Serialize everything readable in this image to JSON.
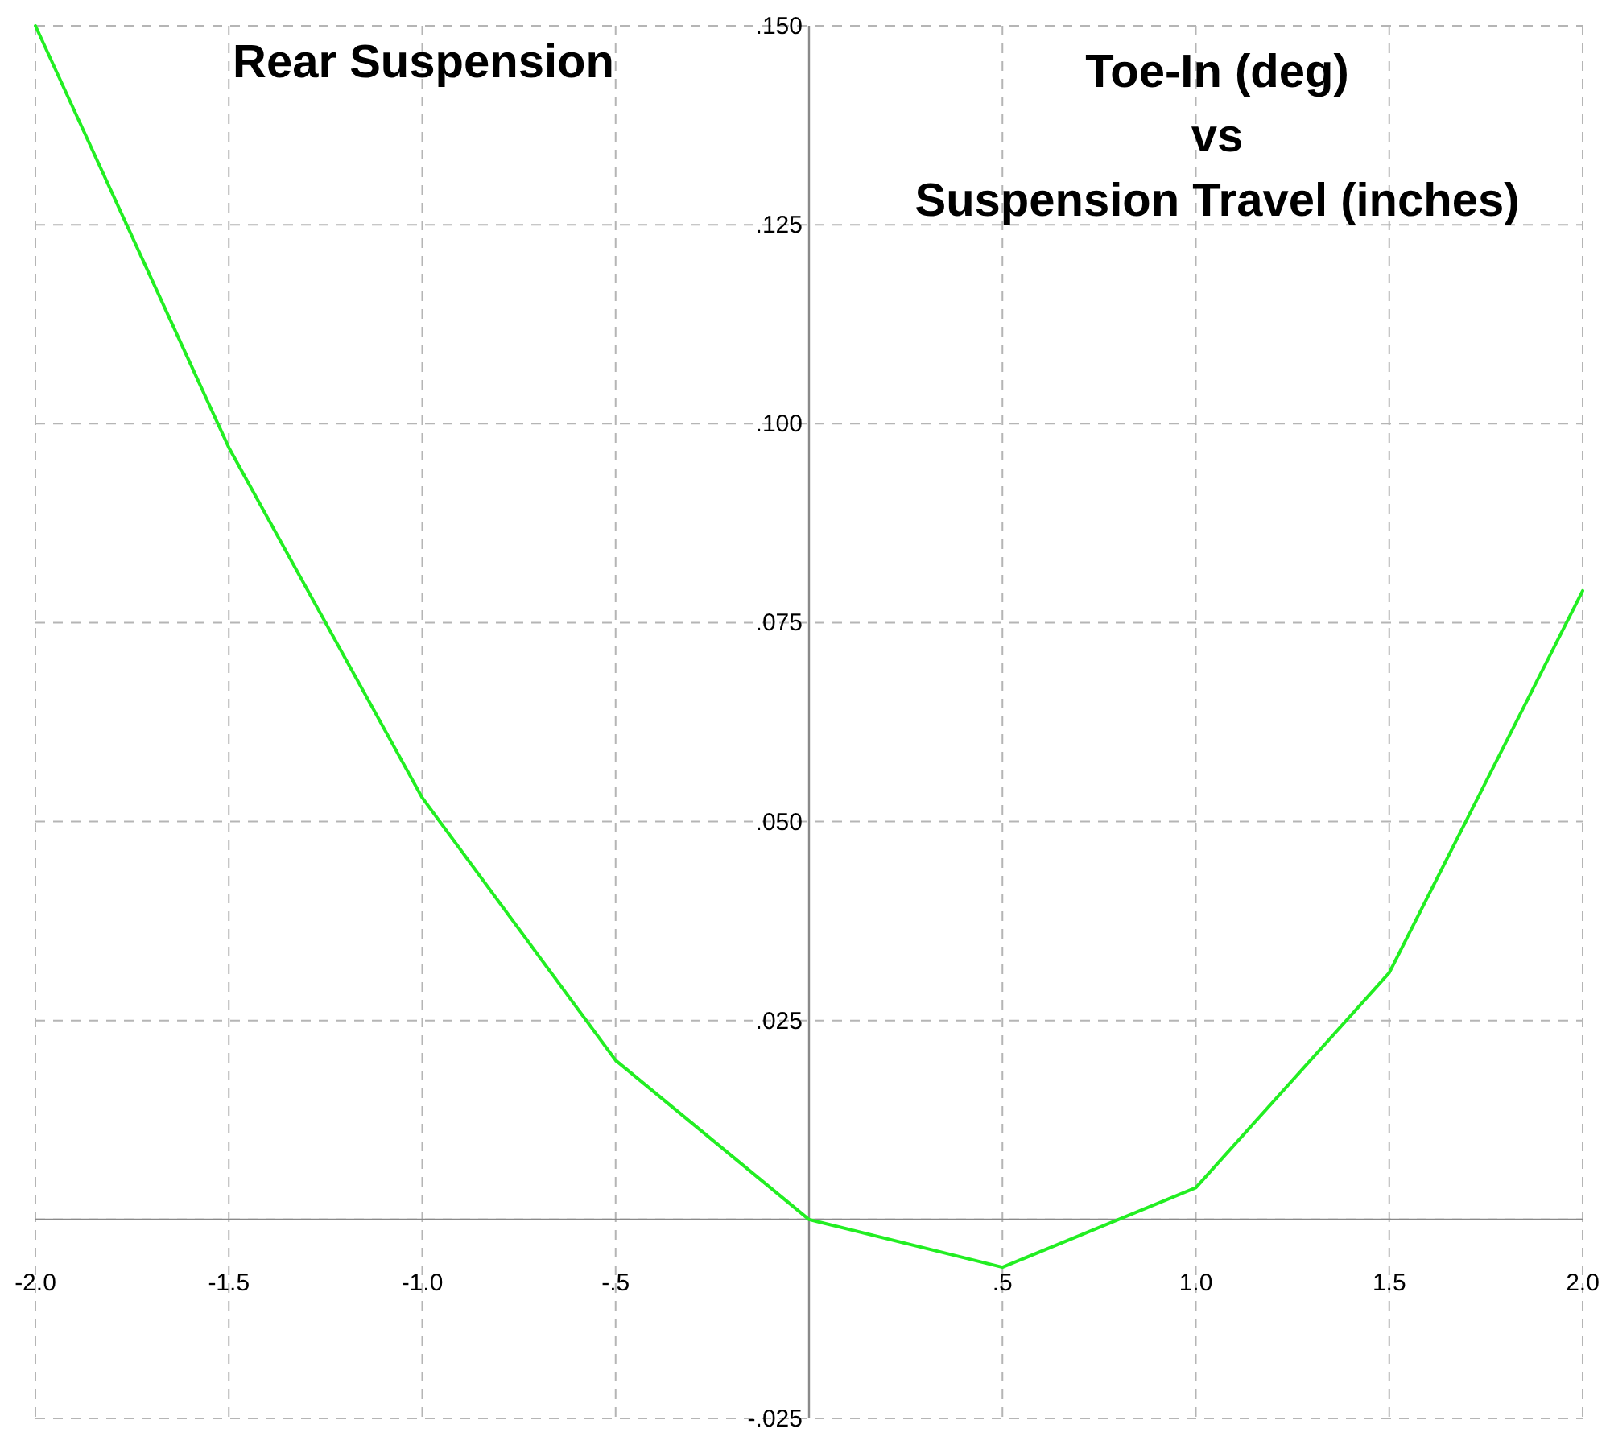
{
  "chart_data": {
    "type": "line",
    "title": "Toe-In (deg)\nvs\nSuspension Travel (inches)",
    "subtitle": "Rear Suspension",
    "x": [
      -2.0,
      -1.5,
      -1.0,
      -0.5,
      0,
      0.5,
      1.0,
      1.5,
      2.0
    ],
    "series": [
      {
        "color": "#22ee22",
        "values": [
          0.15,
          0.097,
          0.053,
          0.02,
          0,
          -0.006,
          0.004,
          0.031,
          0.079
        ]
      }
    ],
    "xlim": [
      -2.0,
      2.0
    ],
    "xticks": [
      {
        "value": -2.0,
        "label": "-2.0"
      },
      {
        "value": -1.5,
        "label": "-1.5"
      },
      {
        "value": -1.0,
        "label": "-1.0"
      },
      {
        "value": -0.5,
        "label": "-.5"
      },
      {
        "value": 0,
        "label": null
      },
      {
        "value": 0.5,
        "label": ".5"
      },
      {
        "value": 1.0,
        "label": "1.0"
      },
      {
        "value": 1.5,
        "label": "1.5"
      },
      {
        "value": 2.0,
        "label": "2.0"
      }
    ],
    "ylim": [
      -0.025,
      0.15
    ],
    "yticks": [
      {
        "value": -0.025,
        "label": "-.025"
      },
      {
        "value": 0,
        "label": null
      },
      {
        "value": 0.025,
        "label": ".025"
      },
      {
        "value": 0.05,
        "label": ".050"
      },
      {
        "value": 0.075,
        "label": ".075"
      },
      {
        "value": 0.1,
        "label": ".100"
      },
      {
        "value": 0.125,
        "label": ".125"
      },
      {
        "value": 0.15,
        "label": ".150"
      }
    ],
    "grid": true,
    "marker": "none",
    "line_style": "solid"
  }
}
